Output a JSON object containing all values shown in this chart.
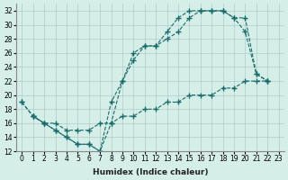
{
  "xlabel": "Humidex (Indice chaleur)",
  "bg_color": "#d6eee8",
  "grid_color": "#aacccc",
  "line_color": "#1a6b6b",
  "xlim": [
    -0.5,
    23.5
  ],
  "ylim": [
    12,
    33
  ],
  "yticks": [
    12,
    14,
    16,
    18,
    20,
    22,
    24,
    26,
    28,
    30,
    32
  ],
  "xticks": [
    0,
    1,
    2,
    3,
    4,
    5,
    6,
    7,
    8,
    9,
    10,
    11,
    12,
    13,
    14,
    15,
    16,
    17,
    18,
    19,
    20,
    21,
    22,
    23
  ],
  "line1_x": [
    0,
    1,
    2,
    3,
    4,
    5,
    6,
    7,
    8,
    9,
    10,
    11,
    12,
    13,
    14,
    15,
    16,
    17,
    18,
    19,
    20,
    21,
    22
  ],
  "line1_y": [
    19,
    17,
    16,
    15,
    14,
    13,
    13,
    12,
    19,
    22,
    26,
    27,
    27,
    29,
    31,
    32,
    32,
    32,
    32,
    31,
    29,
    23,
    22
  ],
  "line2_x": [
    1,
    2,
    3,
    4,
    5,
    6,
    7,
    8,
    9,
    10,
    11,
    12,
    13,
    14,
    15,
    16,
    17,
    18,
    19,
    20,
    21,
    22
  ],
  "line2_y": [
    17,
    16,
    15,
    14,
    13,
    13,
    12,
    16,
    22,
    25,
    27,
    27,
    28,
    29,
    31,
    32,
    32,
    32,
    31,
    31,
    23,
    22
  ],
  "line3_x": [
    0,
    1,
    2,
    3,
    4,
    5,
    6,
    7,
    8,
    9,
    10,
    11,
    12,
    13,
    14,
    15,
    16,
    17,
    18,
    19,
    20,
    21,
    22
  ],
  "line3_y": [
    19,
    17,
    16,
    16,
    15,
    15,
    15,
    16,
    16,
    17,
    17,
    18,
    18,
    19,
    19,
    20,
    20,
    20,
    21,
    21,
    22,
    22,
    22
  ]
}
